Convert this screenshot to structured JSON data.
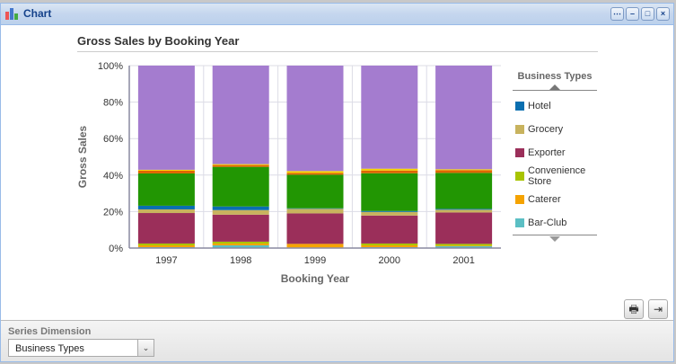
{
  "window": {
    "title": "Chart",
    "buttons": [
      "options",
      "minimize",
      "maximize",
      "close"
    ]
  },
  "chart_data": {
    "type": "bar",
    "stacked": true,
    "title": "Gross Sales by Booking Year",
    "xlabel": "Booking Year",
    "ylabel": "Gross Sales",
    "ylim": [
      0,
      100
    ],
    "yticks": [
      "0%",
      "20%",
      "40%",
      "60%",
      "80%",
      "100%"
    ],
    "categories": [
      "1997",
      "1998",
      "1999",
      "2000",
      "2001"
    ],
    "legend_title": "Business Types",
    "legend_position": "right",
    "series": [
      {
        "name": "Bar-Club",
        "color": "#5bbfc4",
        "values": [
          0.5,
          1.5,
          0.3,
          0.5,
          1.0
        ]
      },
      {
        "name": "Caterer",
        "color": "#f5a300",
        "values": [
          1.0,
          1.0,
          2.0,
          1.0,
          0.3
        ]
      },
      {
        "name": "Convenience Store",
        "color": "#a8c400",
        "values": [
          1.0,
          1.0,
          0.0,
          1.0,
          1.0
        ]
      },
      {
        "name": "Exporter",
        "color": "#9b2f5a",
        "values": [
          16.7,
          14.8,
          16.7,
          15.3,
          17.2
        ]
      },
      {
        "name": "Grocery",
        "color": "#c8b35e",
        "values": [
          2.0,
          2.5,
          2.5,
          2.0,
          1.5
        ]
      },
      {
        "name": "Hotel",
        "color": "#0a6fb0",
        "values": [
          2.0,
          2.0,
          0.3,
          0.5,
          0.5
        ]
      },
      {
        "name": "",
        "color": "#229603",
        "values": [
          17.7,
          21.7,
          18.4,
          20.7,
          19.7
        ]
      },
      {
        "name": "",
        "color": "#dd6600",
        "values": [
          1.5,
          1.0,
          1.0,
          1.5,
          1.5
        ]
      },
      {
        "name": "",
        "color": "#f7d300",
        "values": [
          0.5,
          0.5,
          1.0,
          1.0,
          0.5
        ]
      },
      {
        "name": "",
        "color": "#a47ccf",
        "values": [
          57.1,
          54.0,
          57.8,
          56.5,
          56.8
        ]
      }
    ],
    "legend_visible": [
      "Hotel",
      "Grocery",
      "Exporter",
      "Convenience Store",
      "Caterer",
      "Bar-Club"
    ]
  },
  "actions": {
    "print": "print",
    "export": "export"
  },
  "bottom": {
    "label": "Series Dimension",
    "select_value": "Business Types"
  }
}
